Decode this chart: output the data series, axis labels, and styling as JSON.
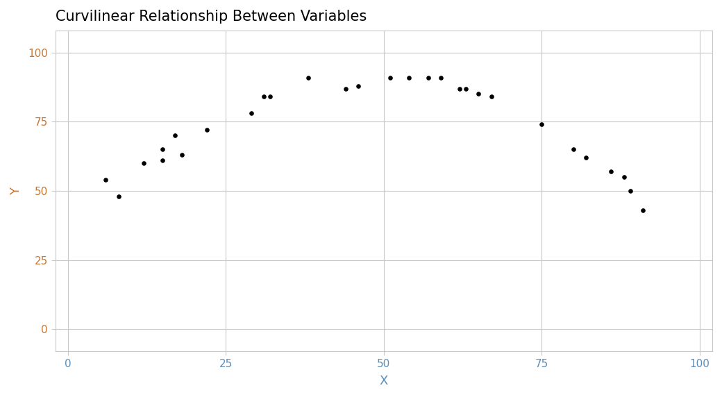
{
  "title": "Curvilinear Relationship Between Variables",
  "xlabel": "X",
  "ylabel": "Y",
  "xlim": [
    -2,
    102
  ],
  "ylim": [
    -8,
    108
  ],
  "xticks": [
    0,
    25,
    50,
    75,
    100
  ],
  "yticks": [
    0,
    25,
    50,
    75,
    100
  ],
  "x": [
    6,
    8,
    12,
    15,
    15,
    17,
    18,
    22,
    29,
    31,
    32,
    38,
    44,
    46,
    51,
    54,
    57,
    59,
    62,
    63,
    65,
    67,
    75,
    80,
    82,
    86,
    88,
    89,
    91
  ],
  "y": [
    54,
    48,
    60,
    65,
    61,
    70,
    63,
    72,
    78,
    84,
    84,
    91,
    87,
    88,
    91,
    91,
    91,
    91,
    87,
    87,
    85,
    84,
    74,
    65,
    62,
    57,
    55,
    50,
    43
  ],
  "point_color": "#000000",
  "point_size": 14,
  "background_color": "#ffffff",
  "grid_color": "#c8c8c8",
  "tick_color_x": "#5b8db8",
  "tick_color_y": "#c87832",
  "axis_line_color": "#c8c8c8",
  "title_fontsize": 15,
  "label_fontsize": 13,
  "tick_fontsize": 11
}
